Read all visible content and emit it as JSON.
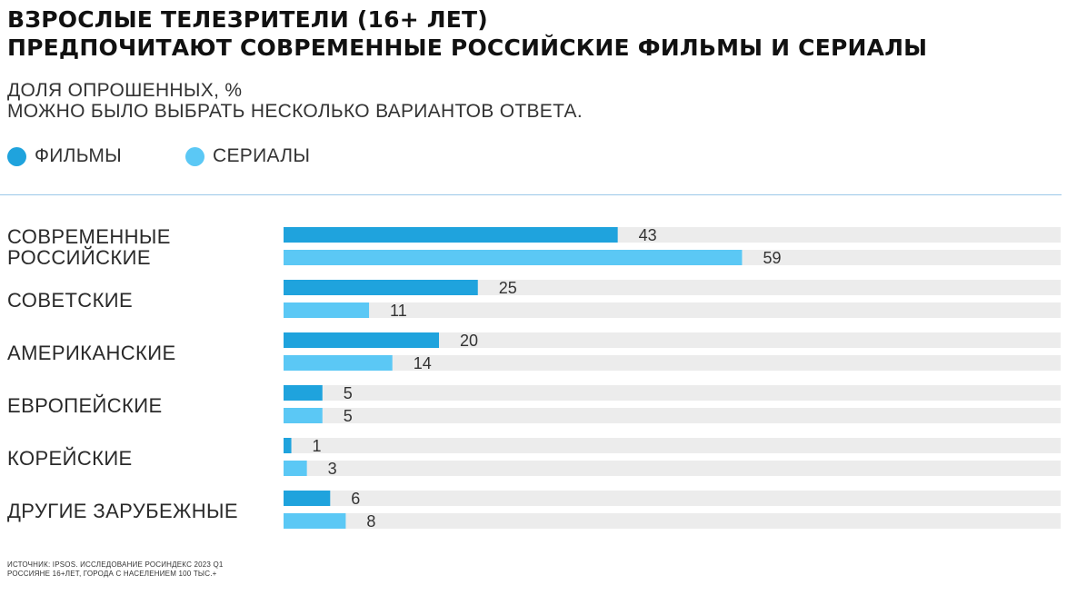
{
  "title_lines": [
    "ВЗРОСЛЫЕ ТЕЛЕЗРИТЕЛИ (16+ ЛЕТ)",
    "ПРЕДПОЧИТАЮТ СОВРЕМЕННЫЕ РОССИЙСКИЕ ФИЛЬМЫ И СЕРИАЛЫ"
  ],
  "subtitle_lines": [
    "ДОЛЯ ОПРОШЕННЫХ, %",
    "МОЖНО БЫЛО ВЫБРАТЬ НЕСКОЛЬКО ВАРИАНТОВ ОТВЕТА."
  ],
  "source_lines": [
    "ИСТОЧНИК: IPSOS. ИССЛЕДОВАНИЕ РОСИНДЕКС 2023 Q1",
    "РОССИЯНЕ 16+ЛЕТ, ГОРОДА С НАСЕЛЕНИЕМ 100 ТЫС.+"
  ],
  "colors": {
    "films": "#1fa3dd",
    "series": "#5bc8f5",
    "track": "#ececec"
  },
  "chart_data": {
    "type": "bar",
    "orientation": "horizontal",
    "categories": [
      [
        "СОВРЕМЕННЫЕ",
        "РОССИЙСКИЕ"
      ],
      [
        "СОВЕТСКИЕ"
      ],
      [
        "АМЕРИКАНСКИЕ"
      ],
      [
        "ЕВРОПЕЙСКИЕ"
      ],
      [
        "КОРЕЙСКИЕ"
      ],
      [
        "ДРУГИЕ ЗАРУБЕЖНЫЕ"
      ]
    ],
    "series": [
      {
        "name": "ФИЛЬМЫ",
        "values": [
          43,
          25,
          20,
          5,
          1,
          6
        ]
      },
      {
        "name": "СЕРИАЛЫ",
        "values": [
          59,
          11,
          14,
          5,
          3,
          8
        ]
      }
    ],
    "xlim": [
      0,
      100
    ],
    "legend": "top-left",
    "grid": false
  }
}
